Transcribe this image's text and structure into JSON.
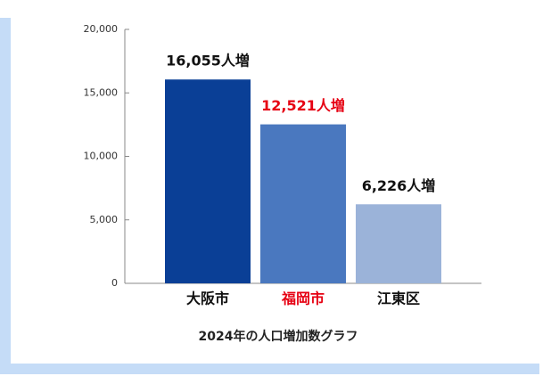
{
  "chart_data": {
    "type": "bar",
    "title": "2024年の人口増加数グラフ",
    "categories": [
      "大阪市",
      "福岡市",
      "江東区"
    ],
    "values": [
      16055,
      12521,
      6226
    ],
    "value_labels": [
      "16,055人増",
      "12,521人増",
      "6,226人増"
    ],
    "colors": [
      "#0a3f96",
      "#4a78bf",
      "#9bb3d9"
    ],
    "label_colors": [
      "#111111",
      "#e60012",
      "#111111"
    ],
    "ylim": [
      0,
      20000
    ],
    "yticks": [
      0,
      {
        "value": 5000,
        "label": "5,000"
      },
      {
        "value": 10000,
        "label": "10,000"
      },
      {
        "value": 15000,
        "label": "15,000"
      },
      {
        "value": 20000,
        "label": "20,000"
      }
    ],
    "grid": false
  }
}
